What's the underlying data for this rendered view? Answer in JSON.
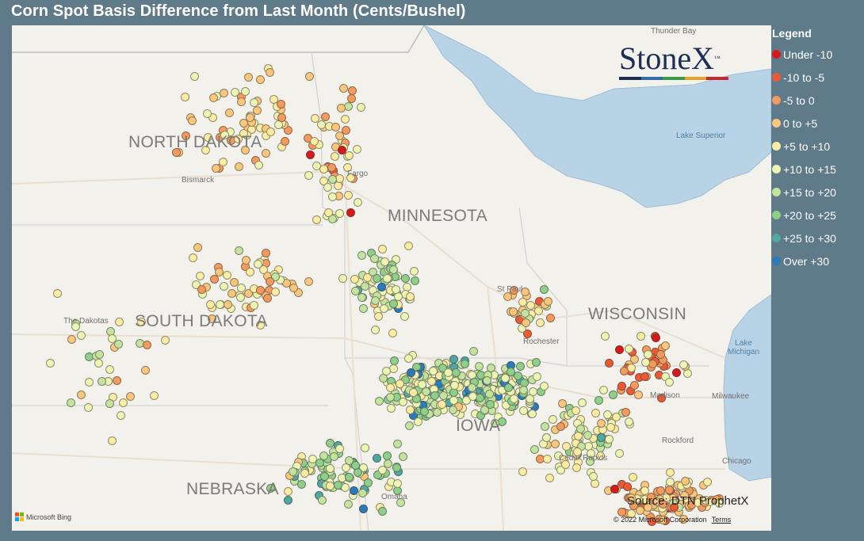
{
  "title": "Corn Spot Basis Difference from Last Month (Cents/Bushel)",
  "legend": {
    "title": "Legend",
    "items": [
      {
        "label": "Under -10",
        "color": "#d7191c"
      },
      {
        "label": "-10 to -5",
        "color": "#ec5a35"
      },
      {
        "label": "-5 to 0",
        "color": "#f49a5d"
      },
      {
        "label": "0 to +5",
        "color": "#f8c77c"
      },
      {
        "label": "+5 to +10",
        "color": "#fbeca3"
      },
      {
        "label": "+10 to +15",
        "color": "#eef5b2"
      },
      {
        "label": "+15 to +20",
        "color": "#c3e39e"
      },
      {
        "label": "+20 to +25",
        "color": "#8fcf89"
      },
      {
        "label": "+25 to +30",
        "color": "#4fa9a0"
      },
      {
        "label": "Over +30",
        "color": "#2b7bba"
      }
    ]
  },
  "map": {
    "state_labels": [
      "NORTH DAKOTA",
      "MINNESOTA",
      "SOUTH DAKOTA",
      "WISCONSIN",
      "NEBRASKA",
      "IOWA"
    ],
    "city_labels": [
      "Bismarck",
      "Fargo",
      "St Paul",
      "Rochester",
      "Madison",
      "Milwaukee",
      "Rockford",
      "Chicago",
      "Cedar Rapids",
      "Omaha",
      "Thunder Bay",
      "The Dakotas"
    ],
    "water_labels": [
      "Lake Superior",
      "Lake Michigan"
    ]
  },
  "logo": {
    "text": "StoneX",
    "tm": "™",
    "bar_colors": [
      "#1c2e52",
      "#2f6db2",
      "#3a9a48",
      "#e5a224",
      "#c7282e"
    ]
  },
  "source": "Source: DTN ProphetX",
  "copyright": "© 2022 Microsoft Corporation",
  "terms": "Terms",
  "bing": "Microsoft Bing",
  "bing_colors": [
    "#f25022",
    "#7fba00",
    "#00a4ef",
    "#ffb900"
  ]
}
